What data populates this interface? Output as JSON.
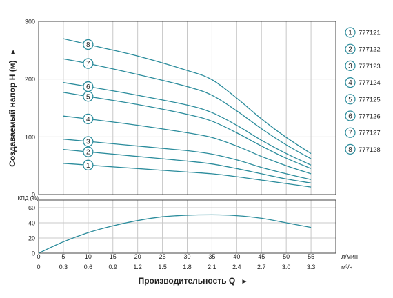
{
  "chart_data": [
    {
      "type": "line",
      "ylabel": "Создаваемый напор H (м)",
      "ylabel_arrow": "►",
      "ylim": [
        0,
        300
      ],
      "yticks": [
        "0",
        "100",
        "200",
        "300"
      ],
      "xlim": [
        0,
        60
      ],
      "grid": true,
      "legend_position": "right",
      "colors": {
        "series": "#2b8c9c",
        "grid": "#c8c8c8",
        "axis": "#444444"
      },
      "series": [
        {
          "name": "777121",
          "marker": "1",
          "marker_x": 10,
          "x": [
            5,
            10,
            20,
            30,
            35,
            40,
            45,
            50,
            55
          ],
          "y": [
            54,
            51,
            45,
            39,
            36,
            31,
            25,
            19,
            13
          ]
        },
        {
          "name": "777122",
          "marker": "2",
          "marker_x": 10,
          "x": [
            5,
            10,
            20,
            30,
            35,
            40,
            45,
            50,
            55
          ],
          "y": [
            78,
            74,
            66,
            58,
            53,
            45,
            36,
            27,
            20
          ]
        },
        {
          "name": "777123",
          "marker": "3",
          "marker_x": 10,
          "x": [
            5,
            10,
            20,
            30,
            35,
            40,
            45,
            50,
            55
          ],
          "y": [
            96,
            92,
            84,
            76,
            70,
            60,
            47,
            36,
            26
          ]
        },
        {
          "name": "777124",
          "marker": "4",
          "marker_x": 10,
          "x": [
            5,
            10,
            20,
            30,
            35,
            40,
            45,
            50,
            55
          ],
          "y": [
            136,
            131,
            120,
            107,
            99,
            84,
            66,
            50,
            36
          ]
        },
        {
          "name": "777125",
          "marker": "5",
          "marker_x": 10,
          "x": [
            5,
            10,
            20,
            30,
            35,
            40,
            45,
            50,
            55
          ],
          "y": [
            177,
            170,
            156,
            139,
            127,
            107,
            84,
            63,
            45
          ]
        },
        {
          "name": "777126",
          "marker": "6",
          "marker_x": 10,
          "x": [
            5,
            10,
            20,
            30,
            35,
            40,
            45,
            50,
            55
          ],
          "y": [
            194,
            187,
            172,
            155,
            142,
            120,
            94,
            71,
            51
          ]
        },
        {
          "name": "777127",
          "marker": "7",
          "marker_x": 10,
          "x": [
            5,
            10,
            20,
            30,
            35,
            40,
            45,
            50,
            55
          ],
          "y": [
            235,
            227,
            208,
            187,
            172,
            145,
            114,
            86,
            62
          ]
        },
        {
          "name": "777128",
          "marker": "8",
          "marker_x": 10,
          "x": [
            5,
            10,
            20,
            30,
            35,
            40,
            45,
            50,
            55
          ],
          "y": [
            270,
            260,
            240,
            215,
            199,
            167,
            131,
            99,
            71
          ]
        }
      ]
    },
    {
      "type": "line",
      "ylabel": "КПД (%)",
      "ylim": [
        0,
        70
      ],
      "yticks": [
        "0",
        "20",
        "40",
        "60"
      ],
      "xlim": [
        0,
        60
      ],
      "grid": true,
      "series": [
        {
          "x": [
            0,
            5,
            10,
            15,
            20,
            25,
            30,
            35,
            40,
            45,
            50,
            55
          ],
          "y": [
            0,
            15,
            27,
            36,
            43,
            48,
            50,
            50.5,
            49.5,
            46,
            40,
            34
          ]
        }
      ]
    }
  ],
  "x_axis": {
    "label": "Производительность Q",
    "label_arrow": "►",
    "lpm_ticks": [
      "0",
      "5",
      "10",
      "15",
      "20",
      "25",
      "30",
      "35",
      "40",
      "45",
      "50",
      "55"
    ],
    "lpm_unit": "л/мин",
    "m3h_ticks": [
      "0",
      "0.3",
      "0.6",
      "0.9",
      "1.2",
      "1.5",
      "1.8",
      "2.1",
      "2.4",
      "2.7",
      "3.0",
      "3.3"
    ],
    "m3h_unit": "м³/ч"
  }
}
